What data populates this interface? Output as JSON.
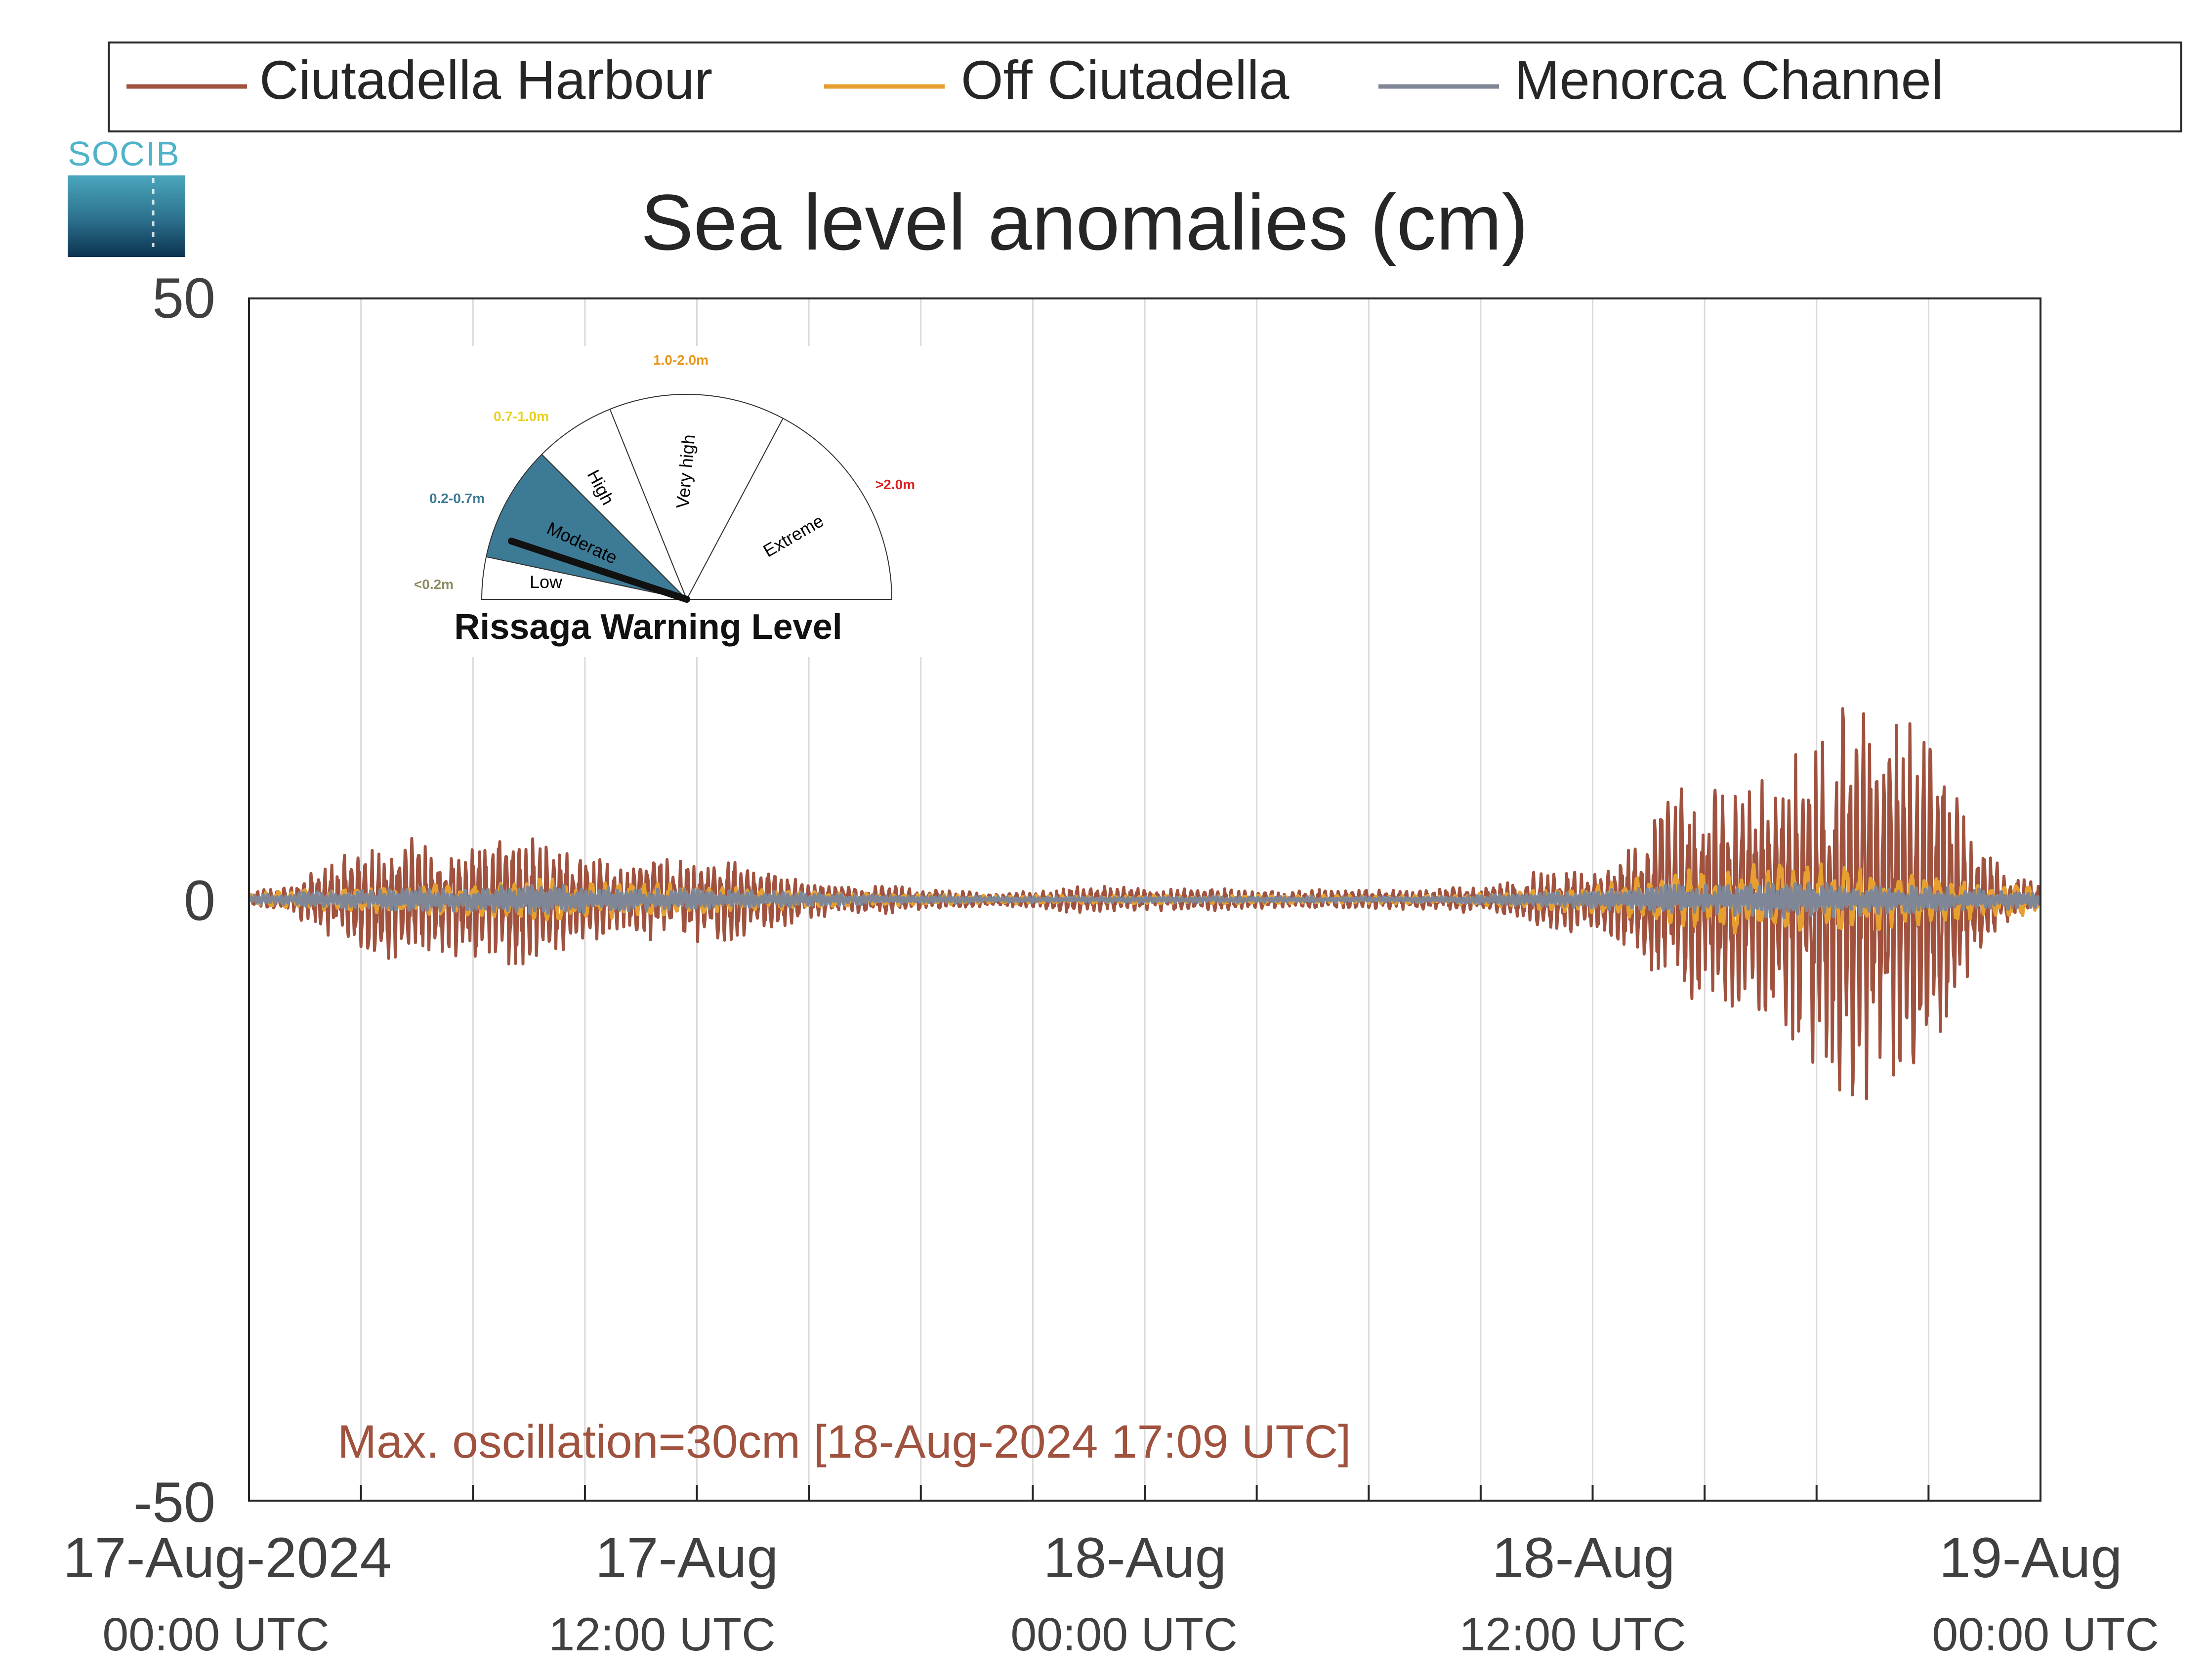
{
  "logo": {
    "text": "SOCIB"
  },
  "legend": {
    "items": [
      {
        "label": "Ciutadella Harbour",
        "color": "#a0523f"
      },
      {
        "label": "Off Ciutadella",
        "color": "#e7a030"
      },
      {
        "label": "Menorca Channel",
        "color": "#7f8797"
      }
    ]
  },
  "chart_data": {
    "type": "line",
    "title": "Sea level anomalies (cm)",
    "xlabel": "",
    "ylabel": "",
    "ylim": [
      -50,
      50
    ],
    "yticks": [
      "50",
      "0",
      "-50"
    ],
    "xlim_hours": [
      0,
      48
    ],
    "xticks": [
      {
        "date": "17-Aug-2024",
        "time": "00:00 UTC"
      },
      {
        "date": "17-Aug",
        "time": "12:00 UTC"
      },
      {
        "date": "18-Aug",
        "time": "00:00 UTC"
      },
      {
        "date": "18-Aug",
        "time": "12:00 UTC"
      },
      {
        "date": "19-Aug",
        "time": "00:00 UTC"
      }
    ],
    "grid": "vertical",
    "legend_position": "top",
    "annotation": "Max. oscillation=30cm [18-Aug-2024 17:09 UTC]",
    "series": [
      {
        "name": "Ciutadella Harbour",
        "color": "#a0523f",
        "envelope_hours": [
          0,
          1,
          2,
          3,
          4,
          5,
          6,
          7,
          8,
          9,
          10,
          11,
          12,
          13,
          14,
          15,
          16,
          17,
          18,
          19,
          20,
          21,
          22,
          23,
          24,
          25,
          26,
          27,
          28,
          29,
          30,
          31,
          32,
          33,
          34,
          35,
          36,
          37,
          38,
          39,
          40,
          41,
          42,
          43,
          44,
          45,
          46,
          47,
          48
        ],
        "envelope_amplitude_cm": [
          0.5,
          1.0,
          2.5,
          4.0,
          4.5,
          4.0,
          4.5,
          5.0,
          4.0,
          3.0,
          2.5,
          3.0,
          3.0,
          3.0,
          2.0,
          1.5,
          1.0,
          1.0,
          0.8,
          0.6,
          0.5,
          0.6,
          1.0,
          1.0,
          0.8,
          0.8,
          0.8,
          0.6,
          0.7,
          0.8,
          0.7,
          0.7,
          0.8,
          1.0,
          1.5,
          2.5,
          2.0,
          4.0,
          8.0,
          10.0,
          8.0,
          9.0,
          12.0,
          15.0,
          13.0,
          12.0,
          6.0,
          2.0,
          1.0
        ]
      },
      {
        "name": "Off Ciutadella",
        "color": "#e7a030",
        "envelope_hours": [
          0,
          4,
          8,
          12,
          16,
          20,
          24,
          28,
          32,
          36,
          37,
          38,
          40,
          42,
          44,
          46,
          48
        ],
        "envelope_amplitude_cm": [
          0.5,
          1.0,
          1.5,
          1.0,
          0.5,
          0.3,
          0.3,
          0.3,
          0.3,
          1.0,
          1.5,
          2.0,
          2.5,
          3.0,
          2.0,
          1.5,
          1.0
        ]
      },
      {
        "name": "Menorca Channel",
        "color": "#7f8797",
        "envelope_hours": [
          0,
          4,
          8,
          12,
          16,
          20,
          24,
          28,
          32,
          36,
          38,
          40,
          42,
          44,
          46,
          48
        ],
        "envelope_amplitude_cm": [
          0.3,
          0.8,
          1.0,
          0.7,
          0.4,
          0.2,
          0.2,
          0.2,
          0.2,
          0.6,
          1.0,
          1.2,
          1.3,
          1.0,
          0.8,
          0.6
        ]
      }
    ]
  },
  "warning_gauge": {
    "title": "Rissaga Warning Level",
    "current_level": "Moderate",
    "levels": [
      {
        "name": "Low",
        "range": "<0.2m",
        "color": "#8c8c60"
      },
      {
        "name": "Moderate",
        "range": "0.2-0.7m",
        "color": "#3c7a95"
      },
      {
        "name": "High",
        "range": "0.7-1.0m",
        "color": "#e6d21e"
      },
      {
        "name": "Very high",
        "range": "1.0-2.0m",
        "color": "#eb9619"
      },
      {
        "name": "Extreme",
        "range": ">2.0m",
        "color": "#dc1e1e"
      }
    ]
  }
}
